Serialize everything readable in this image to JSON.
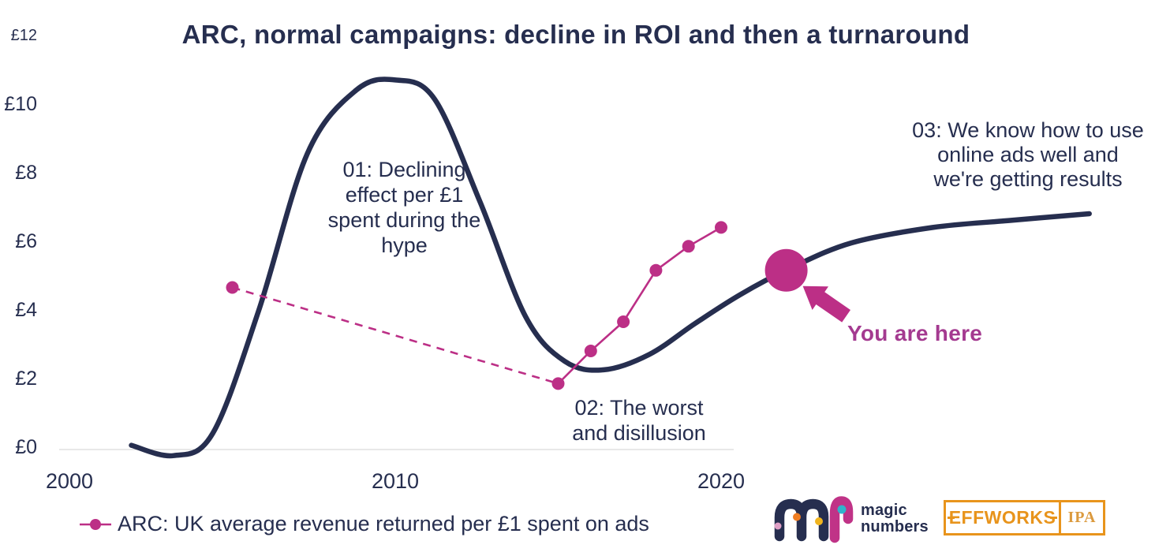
{
  "title": "ARC, normal campaigns: decline in ROI and then a turnaround",
  "chart_data": {
    "type": "line",
    "title": "ARC, normal campaigns: decline in ROI and then a turnaround",
    "xlabel": "",
    "ylabel": "",
    "x_ticks": [
      "2000",
      "2010",
      "2020"
    ],
    "y_ticks": [
      "£0",
      "£2",
      "£4",
      "£6",
      "£8",
      "£10",
      "£12"
    ],
    "ylim": [
      0,
      12
    ],
    "grid": "baseline-at-zero-only",
    "legend_position": "bottom-left",
    "series": [
      {
        "name": "hype cycle curve (unlabelled)",
        "type": "smooth-line",
        "color": "#262e4f",
        "points": [
          [
            2001.9,
            0.1
          ],
          [
            2003.2,
            -0.2
          ],
          [
            2004.4,
            0.45
          ],
          [
            2005.8,
            4.0
          ],
          [
            2007.3,
            8.6
          ],
          [
            2008.8,
            10.45
          ],
          [
            2010,
            10.75
          ],
          [
            2011.2,
            10.2
          ],
          [
            2012.6,
            7.2
          ],
          [
            2014,
            3.85
          ],
          [
            2015.2,
            2.55
          ],
          [
            2016.4,
            2.3
          ],
          [
            2017.8,
            2.75
          ],
          [
            2019.2,
            3.65
          ],
          [
            2020.6,
            4.5
          ],
          [
            2022.1,
            5.25
          ],
          [
            2024,
            6.0
          ],
          [
            2026.5,
            6.45
          ],
          [
            2028.8,
            6.65
          ],
          [
            2031.3,
            6.85
          ]
        ]
      },
      {
        "name": "ARC: UK average revenue returned per £1 spent on ads",
        "type": "line-with-markers",
        "color": "#bc2f86",
        "dashed_segment": "first (2005 to 2015)",
        "points": [
          [
            2005,
            4.7
          ],
          [
            2015,
            1.9
          ],
          [
            2016,
            2.85
          ],
          [
            2017,
            3.7
          ],
          [
            2018,
            5.2
          ],
          [
            2019,
            5.9
          ],
          [
            2020,
            6.45
          ]
        ]
      }
    ],
    "you_are_here": {
      "year": 2022,
      "value": 5.2
    },
    "annotations": [
      "01: Declining effect per £1 spent during the hype",
      "02: The worst and disillusion",
      "03: We know how to use online ads well and we're getting results",
      "You are here"
    ]
  },
  "labels": {
    "phase1": "01: Declining\neffect per £1\nspent during the\nhype",
    "phase2": "02: The worst\nand disillusion",
    "phase3": "03: We know how to use\nonline ads well and\nwe're getting results",
    "you_are_here": "You are here"
  },
  "legend": {
    "arc_label": "ARC: UK average revenue returned per £1 spent on ads"
  },
  "logos": {
    "magic_numbers": {
      "word1": "magic",
      "word2": "numbers"
    },
    "effworks": {
      "name": "EFFWORKS",
      "partner": "IPA"
    }
  },
  "colors": {
    "navy": "#262e4f",
    "pink": "#bc2f86",
    "pink_text": "#a43a90",
    "baseline_grid": "#d9d9d9",
    "orange": "#e8941c",
    "ipa_orange": "#db9a3e",
    "logo_n_pink": "#c03387",
    "logo_dot_lightpink": "#dfa0c6",
    "logo_dot_orange": "#ef7d22",
    "logo_dot_yellow": "#f0b41f",
    "logo_dot_teal": "#30b4cc"
  }
}
